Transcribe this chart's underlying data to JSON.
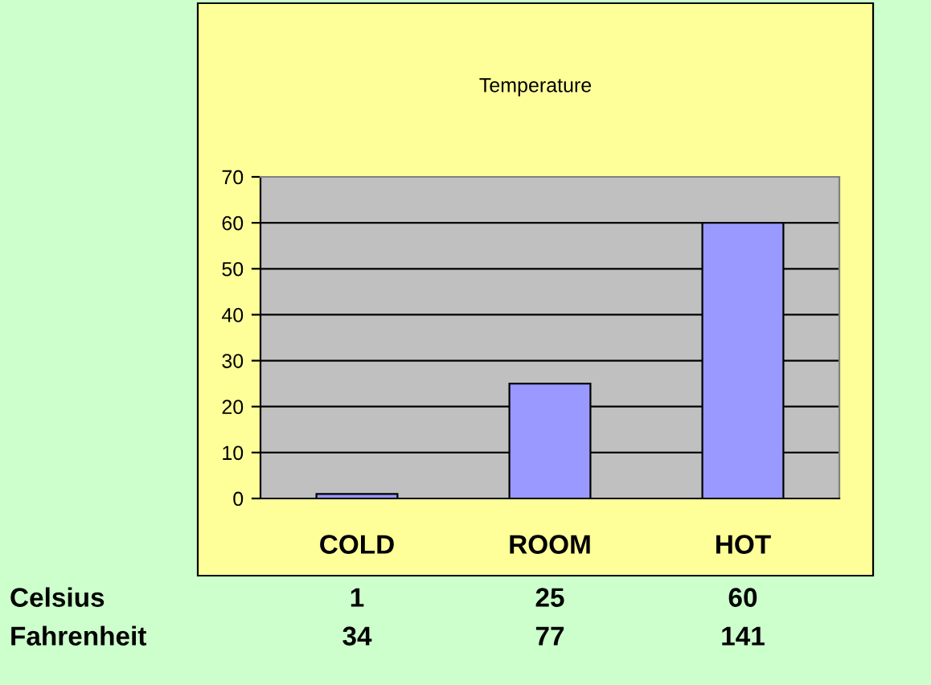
{
  "chart_data": {
    "type": "bar",
    "title": "Temperature",
    "categories": [
      "COLD",
      "ROOM",
      "HOT"
    ],
    "values": [
      1,
      25,
      60
    ],
    "color": "#9999ff",
    "ylim": [
      0,
      70
    ],
    "yticks": [
      0,
      10,
      20,
      30,
      40,
      50,
      60,
      70
    ],
    "grid": "y",
    "data_labels": true,
    "ylabel": "Celsius",
    "annotations": [
      "Fahrenheit",
      "34",
      "77",
      "141"
    ]
  }
}
